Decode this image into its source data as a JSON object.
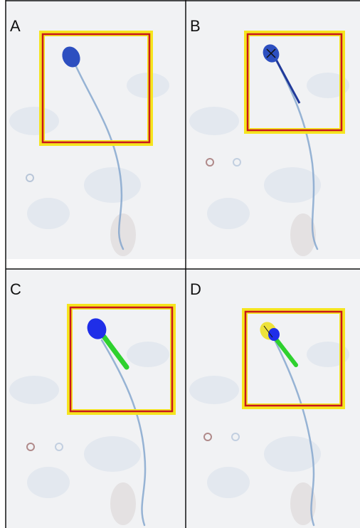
{
  "panels": [
    {
      "label": "A"
    },
    {
      "label": "B"
    },
    {
      "label": "C"
    },
    {
      "label": "D"
    }
  ]
}
